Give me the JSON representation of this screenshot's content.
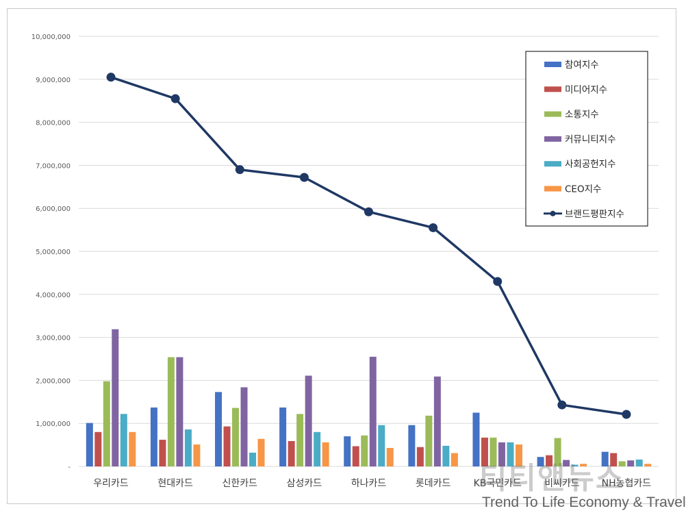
{
  "chart_data": {
    "type": "bar",
    "categories": [
      "우리카드",
      "현대카드",
      "신한카드",
      "삼성카드",
      "하나카드",
      "롯데카드",
      "KB국민카드",
      "비씨카드",
      "NH농협카드"
    ],
    "y_ticks": [
      "-",
      "1,000,000",
      "2,000,000",
      "3,000,000",
      "4,000,000",
      "5,000,000",
      "6,000,000",
      "7,000,000",
      "8,000,000",
      "9,000,000",
      "10,000,000"
    ],
    "ylim": [
      0,
      10000000
    ],
    "grid": true,
    "legend_position": "top-right",
    "series": [
      {
        "name": "참여지수",
        "kind": "bar",
        "color": "#4472c4",
        "values": [
          1010000,
          1370000,
          1730000,
          1370000,
          700000,
          960000,
          1250000,
          220000,
          340000
        ]
      },
      {
        "name": "미디어지수",
        "kind": "bar",
        "color": "#c0504d",
        "values": [
          800000,
          620000,
          930000,
          590000,
          470000,
          450000,
          670000,
          260000,
          310000
        ]
      },
      {
        "name": "소통지수",
        "kind": "bar",
        "color": "#9bbb59",
        "values": [
          1980000,
          2540000,
          1360000,
          1220000,
          720000,
          1180000,
          670000,
          660000,
          120000
        ]
      },
      {
        "name": "커뮤니티지수",
        "kind": "bar",
        "color": "#8064a2",
        "values": [
          3190000,
          2540000,
          1840000,
          2110000,
          2550000,
          2090000,
          560000,
          150000,
          140000
        ]
      },
      {
        "name": "사회공헌지수",
        "kind": "bar",
        "color": "#4bacc6",
        "values": [
          1220000,
          860000,
          320000,
          800000,
          960000,
          480000,
          560000,
          40000,
          160000
        ]
      },
      {
        "name": "CEO지수",
        "kind": "bar",
        "color": "#f79646",
        "values": [
          800000,
          510000,
          640000,
          560000,
          430000,
          310000,
          510000,
          60000,
          60000
        ]
      },
      {
        "name": "브랜드평판지수",
        "kind": "line",
        "color": "#1f3864",
        "values": [
          9050000,
          8550000,
          6900000,
          6720000,
          5920000,
          5550000,
          4300000,
          1430000,
          1210000
        ]
      }
    ]
  },
  "watermark": {
    "logo": "티티앤뉴스",
    "tagline": "Trend To Life Economy & Travel"
  }
}
